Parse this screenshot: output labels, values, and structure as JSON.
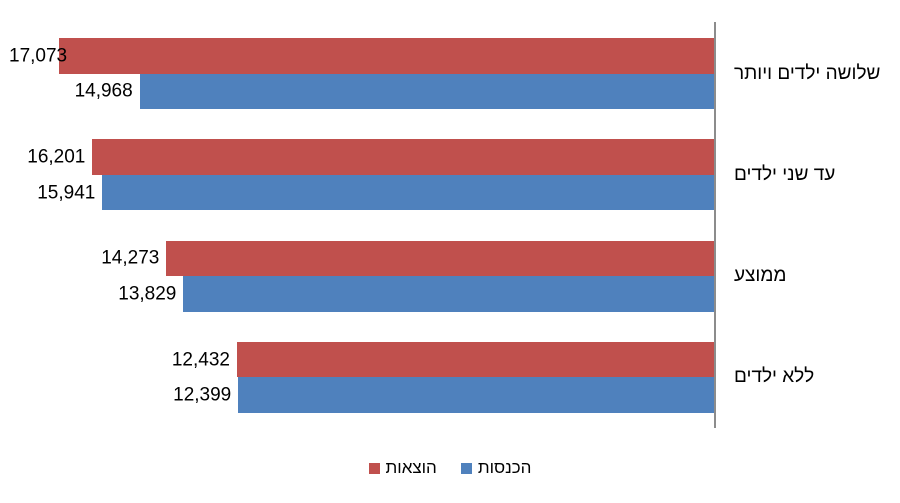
{
  "chart_data": {
    "type": "bar",
    "orientation": "horizontal",
    "direction": "rtl",
    "title": "",
    "categories": [
      "שלושה ילדים ויותר",
      "עד שני ילדים",
      "ממוצע",
      "ללא ילדים"
    ],
    "series": [
      {
        "name": "הוצאות",
        "color": "#C0504D",
        "values": [
          17073,
          16201,
          14273,
          12432
        ]
      },
      {
        "name": "הכנסות",
        "color": "#4F81BD",
        "values": [
          14968,
          15941,
          13829,
          12399
        ]
      }
    ],
    "value_labels": [
      [
        "17,073",
        "16,201",
        "14,273",
        "12,432"
      ],
      [
        "14,968",
        "15,941",
        "13,829",
        "12,399"
      ]
    ],
    "value_axis_implied_max": 18600,
    "grid": false,
    "legend_position": "bottom",
    "axis_line_color": "#8C8C8C",
    "text_color": "#000000",
    "background_color": "#FFFFFF"
  }
}
